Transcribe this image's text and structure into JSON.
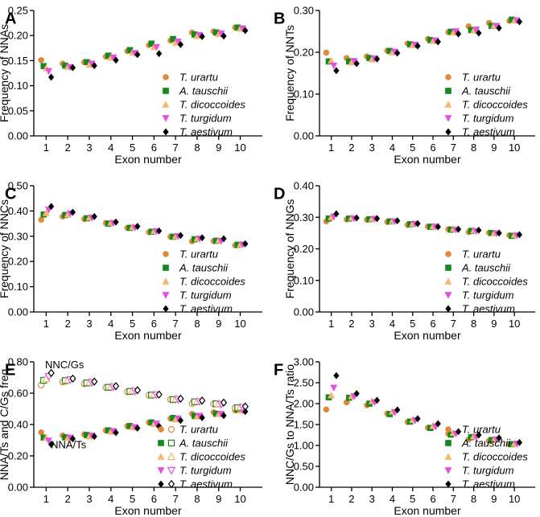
{
  "species": [
    {
      "name": "T. urartu",
      "color": "#e0893b",
      "shape": "circle"
    },
    {
      "name": "A. tauschii",
      "color": "#13891f",
      "shape": "square"
    },
    {
      "name": "T. dicoccoides",
      "color": "#f7b86e",
      "shape": "triangle-up"
    },
    {
      "name": "T. turgidum",
      "color": "#e64fe6",
      "shape": "triangle-down"
    },
    {
      "name": "T. aestivum",
      "color": "#000000",
      "shape": "diamond"
    }
  ],
  "chart_data": [
    {
      "panel": "A",
      "type": "scatter",
      "xlabel": "Exon number",
      "ylabel": "Frequency of NNAs",
      "ylim": [
        0,
        0.25
      ],
      "yticks": [
        "0.00",
        "0.05",
        "0.10",
        "0.15",
        "0.20",
        "0.25"
      ],
      "categories": [
        "1",
        "2",
        "3",
        "4",
        "5",
        "6",
        "7",
        "8",
        "9",
        "10"
      ],
      "series": [
        {
          "name": "T. urartu",
          "values": [
            0.151,
            0.144,
            0.147,
            0.158,
            0.169,
            0.181,
            0.19,
            0.206,
            0.208,
            0.216
          ]
        },
        {
          "name": "A. tauschii",
          "values": [
            0.139,
            0.14,
            0.147,
            0.16,
            0.171,
            0.184,
            0.193,
            0.202,
            0.206,
            0.216
          ]
        },
        {
          "name": "T. dicoccoides",
          "values": [
            0.135,
            0.138,
            0.142,
            0.156,
            0.166,
            0.177,
            0.186,
            0.199,
            0.203,
            0.214
          ]
        },
        {
          "name": "T. turgidum",
          "values": [
            0.129,
            0.137,
            0.144,
            0.156,
            0.165,
            0.177,
            0.188,
            0.201,
            0.204,
            0.214
          ]
        },
        {
          "name": "T. aestivum",
          "values": [
            0.117,
            0.136,
            0.14,
            0.151,
            0.162,
            0.164,
            0.182,
            0.198,
            0.199,
            0.21
          ]
        }
      ]
    },
    {
      "panel": "B",
      "type": "scatter",
      "xlabel": "Exon number",
      "ylabel": "Frequency of NNTs",
      "ylim": [
        0,
        0.3
      ],
      "yticks": [
        "0.00",
        "0.10",
        "0.20",
        "0.30"
      ],
      "categories": [
        "1",
        "2",
        "3",
        "4",
        "5",
        "6",
        "7",
        "8",
        "9",
        "10"
      ],
      "series": [
        {
          "name": "T. urartu",
          "values": [
            0.199,
            0.186,
            0.19,
            0.204,
            0.221,
            0.232,
            0.248,
            0.262,
            0.27,
            0.275
          ]
        },
        {
          "name": "A. tauschii",
          "values": [
            0.178,
            0.178,
            0.186,
            0.203,
            0.219,
            0.229,
            0.249,
            0.253,
            0.263,
            0.278
          ]
        },
        {
          "name": "T. dicoccoides",
          "values": [
            0.18,
            0.176,
            0.183,
            0.2,
            0.217,
            0.227,
            0.247,
            0.252,
            0.264,
            0.276
          ]
        },
        {
          "name": "T. turgidum",
          "values": [
            0.168,
            0.179,
            0.185,
            0.201,
            0.218,
            0.228,
            0.25,
            0.254,
            0.263,
            0.276
          ]
        },
        {
          "name": "T. aestivum",
          "values": [
            0.156,
            0.173,
            0.184,
            0.198,
            0.215,
            0.225,
            0.244,
            0.246,
            0.258,
            0.273
          ]
        }
      ]
    },
    {
      "panel": "C",
      "type": "scatter",
      "xlabel": "Exon number",
      "ylabel": "Frequency of NNCs",
      "ylim": [
        0,
        0.5
      ],
      "yticks": [
        "0.00",
        "0.10",
        "0.20",
        "0.30",
        "0.40",
        "0.50"
      ],
      "categories": [
        "1",
        "2",
        "3",
        "4",
        "5",
        "6",
        "7",
        "8",
        "9",
        "10"
      ],
      "series": [
        {
          "name": "T. urartu",
          "values": [
            0.365,
            0.378,
            0.368,
            0.352,
            0.333,
            0.316,
            0.298,
            0.28,
            0.281,
            0.264
          ]
        },
        {
          "name": "A. tauschii",
          "values": [
            0.386,
            0.384,
            0.371,
            0.35,
            0.333,
            0.318,
            0.298,
            0.288,
            0.282,
            0.266
          ]
        },
        {
          "name": "T. dicoccoides",
          "values": [
            0.392,
            0.386,
            0.374,
            0.354,
            0.336,
            0.321,
            0.3,
            0.291,
            0.284,
            0.268
          ]
        },
        {
          "name": "T. turgidum",
          "values": [
            0.405,
            0.39,
            0.373,
            0.352,
            0.334,
            0.319,
            0.3,
            0.29,
            0.281,
            0.267
          ]
        },
        {
          "name": "T. aestivum",
          "values": [
            0.418,
            0.395,
            0.378,
            0.356,
            0.339,
            0.321,
            0.303,
            0.294,
            0.29,
            0.27
          ]
        }
      ]
    },
    {
      "panel": "D",
      "type": "scatter",
      "xlabel": "Exon number",
      "ylabel": "Frequency of NNGs",
      "ylim": [
        0,
        0.4
      ],
      "yticks": [
        "0.00",
        "0.10",
        "0.20",
        "0.30",
        "0.40"
      ],
      "categories": [
        "1",
        "2",
        "3",
        "4",
        "5",
        "6",
        "7",
        "8",
        "9",
        "10"
      ],
      "series": [
        {
          "name": "T. urartu",
          "values": [
            0.287,
            0.293,
            0.292,
            0.285,
            0.276,
            0.271,
            0.262,
            0.253,
            0.251,
            0.243
          ]
        },
        {
          "name": "A. tauschii",
          "values": [
            0.296,
            0.296,
            0.294,
            0.287,
            0.278,
            0.27,
            0.261,
            0.257,
            0.25,
            0.241
          ]
        },
        {
          "name": "T. dicoccoides",
          "values": [
            0.3,
            0.299,
            0.296,
            0.289,
            0.28,
            0.272,
            0.264,
            0.259,
            0.25,
            0.244
          ]
        },
        {
          "name": "T. turgidum",
          "values": [
            0.302,
            0.296,
            0.295,
            0.287,
            0.279,
            0.27,
            0.26,
            0.256,
            0.249,
            0.242
          ]
        },
        {
          "name": "T. aestivum",
          "values": [
            0.311,
            0.298,
            0.296,
            0.289,
            0.28,
            0.27,
            0.262,
            0.259,
            0.25,
            0.245
          ]
        }
      ]
    },
    {
      "panel": "E",
      "type": "scatter",
      "xlabel": "Exon number",
      "ylabel": "NNA/Ts and C/Gs freq",
      "ylim": [
        0,
        0.8
      ],
      "yticks": [
        "0.00",
        "0.20",
        "0.40",
        "0.60",
        "0.80"
      ],
      "categories": [
        "1",
        "2",
        "3",
        "4",
        "5",
        "6",
        "7",
        "8",
        "9",
        "10"
      ],
      "annotations": [
        "NNC/Gs",
        "NNA/Ts"
      ],
      "series": [
        {
          "name": "T. urartu",
          "group": "NNA/Ts",
          "values": [
            0.35,
            0.33,
            0.337,
            0.362,
            0.39,
            0.413,
            0.438,
            0.468,
            0.478,
            0.491
          ]
        },
        {
          "name": "A. tauschii",
          "group": "NNA/Ts",
          "values": [
            0.317,
            0.318,
            0.333,
            0.363,
            0.39,
            0.413,
            0.442,
            0.455,
            0.469,
            0.494
          ]
        },
        {
          "name": "T. dicoccoides",
          "group": "NNA/Ts",
          "values": [
            0.315,
            0.314,
            0.325,
            0.356,
            0.383,
            0.404,
            0.433,
            0.451,
            0.467,
            0.49
          ]
        },
        {
          "name": "T. turgidum",
          "group": "NNA/Ts",
          "values": [
            0.297,
            0.316,
            0.329,
            0.357,
            0.383,
            0.405,
            0.438,
            0.455,
            0.467,
            0.49
          ]
        },
        {
          "name": "T. aestivum",
          "group": "NNA/Ts",
          "values": [
            0.273,
            0.309,
            0.324,
            0.349,
            0.377,
            0.389,
            0.426,
            0.444,
            0.457,
            0.483
          ]
        },
        {
          "name": "T. urartu",
          "group": "NNC/Gs",
          "values": [
            0.652,
            0.671,
            0.66,
            0.637,
            0.609,
            0.587,
            0.56,
            0.533,
            0.532,
            0.507
          ]
        },
        {
          "name": "A. tauschii",
          "group": "NNC/Gs",
          "values": [
            0.682,
            0.68,
            0.665,
            0.637,
            0.611,
            0.588,
            0.559,
            0.545,
            0.532,
            0.507
          ]
        },
        {
          "name": "T. dicoccoides",
          "group": "NNC/Gs",
          "values": [
            0.692,
            0.685,
            0.67,
            0.643,
            0.616,
            0.593,
            0.564,
            0.55,
            0.534,
            0.512
          ]
        },
        {
          "name": "T. turgidum",
          "group": "NNC/Gs",
          "values": [
            0.707,
            0.686,
            0.668,
            0.639,
            0.613,
            0.589,
            0.56,
            0.546,
            0.53,
            0.509
          ]
        },
        {
          "name": "T. aestivum",
          "group": "NNC/Gs",
          "values": [
            0.729,
            0.693,
            0.674,
            0.645,
            0.619,
            0.591,
            0.565,
            0.553,
            0.54,
            0.515
          ]
        }
      ]
    },
    {
      "panel": "F",
      "type": "scatter",
      "xlabel": "Exon number",
      "ylabel": "NNC/Gs to NNA/Ts ratio",
      "ylim": [
        0,
        3
      ],
      "yticks": [
        "0.00",
        "0.50",
        "1.00",
        "1.50",
        "2.00",
        "2.50",
        "3.00"
      ],
      "categories": [
        "1",
        "2",
        "3",
        "4",
        "5",
        "6",
        "7",
        "8",
        "9",
        "10"
      ],
      "series": [
        {
          "name": "T. urartu",
          "values": [
            1.86,
            2.03,
            1.96,
            1.76,
            1.56,
            1.42,
            1.28,
            1.14,
            1.11,
            1.03
          ]
        },
        {
          "name": "A. tauschii",
          "values": [
            2.15,
            2.14,
            2.0,
            1.75,
            1.57,
            1.42,
            1.26,
            1.2,
            1.13,
            1.03
          ]
        },
        {
          "name": "T. dicoccoides",
          "values": [
            2.2,
            2.18,
            2.06,
            1.81,
            1.61,
            1.47,
            1.3,
            1.22,
            1.14,
            1.04
          ]
        },
        {
          "name": "T. turgidum",
          "values": [
            2.38,
            2.17,
            2.03,
            1.79,
            1.6,
            1.45,
            1.28,
            1.2,
            1.14,
            1.04
          ]
        },
        {
          "name": "T. aestivum",
          "values": [
            2.67,
            2.24,
            2.08,
            1.85,
            1.64,
            1.52,
            1.33,
            1.25,
            1.18,
            1.07
          ]
        }
      ]
    }
  ]
}
